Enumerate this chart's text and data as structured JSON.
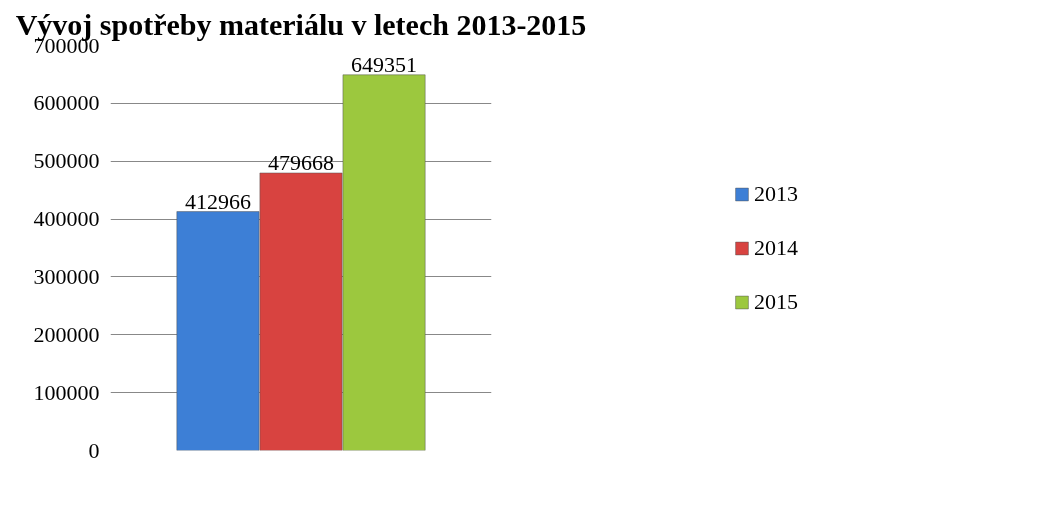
{
  "chart_data": {
    "type": "bar",
    "title": "Vývoj spotřeby materiálu v letech 2013-2015",
    "categories": [
      null
    ],
    "series": [
      {
        "name": "2013",
        "color": "#3d7fd6",
        "values": [
          412966
        ]
      },
      {
        "name": "2014",
        "color": "#d84340",
        "values": [
          479668
        ]
      },
      {
        "name": "2015",
        "color": "#9cc83e",
        "values": [
          649351
        ]
      }
    ],
    "ylim": [
      0,
      700000
    ],
    "yticks": [
      0,
      100000,
      200000,
      300000,
      400000,
      500000,
      600000,
      700000
    ],
    "grid": "y",
    "legend": "right",
    "data_labels": true,
    "tick_labels": "y"
  }
}
